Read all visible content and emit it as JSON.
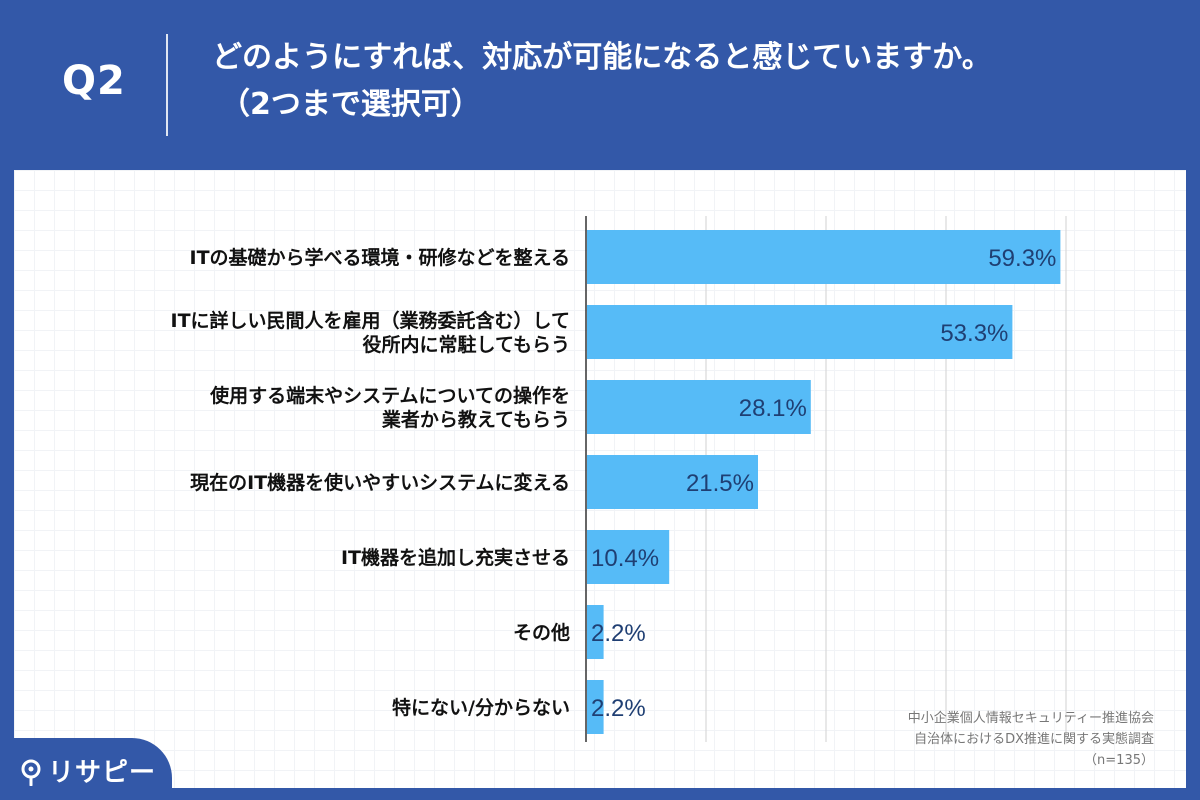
{
  "header": {
    "question_number": "Q2",
    "question_line1": "どのようにすれば、対応が可能になると感じていますか。",
    "question_line2": "（2つまで選択可）"
  },
  "chart_data": {
    "type": "bar",
    "orientation": "horizontal",
    "categories": [
      [
        "ITの基礎から学べる環境・研修などを整える"
      ],
      [
        "ITに詳しい民間人を雇用（業務委託含む）して",
        "役所内に常駐してもらう"
      ],
      [
        "使用する端末やシステムについての操作を",
        "業者から教えてもらう"
      ],
      [
        "現在のIT機器を使いやすいシステムに変える"
      ],
      [
        "IT機器を追加し充実させる"
      ],
      [
        "その他"
      ],
      [
        "特にない/分からない"
      ]
    ],
    "values": [
      59.3,
      53.3,
      28.1,
      21.5,
      10.4,
      2.2,
      2.2
    ],
    "value_labels": [
      "59.3%",
      "53.3%",
      "28.1%",
      "21.5%",
      "10.4%",
      "2.2%",
      "2.2%"
    ],
    "xlim": [
      0,
      60
    ],
    "gridlines": [
      15,
      30,
      45,
      60
    ],
    "grid": true,
    "bar_color": "#56bbf7",
    "value_label_color": "#1f3f73"
  },
  "source": {
    "line1": "中小企業個人情報セキュリティー推進協会",
    "line2": "自治体におけるDX推進に関する実態調査",
    "line3": "（n=135）"
  },
  "brand": {
    "logo_icon": "location-pin-icon",
    "name": "リサピー"
  },
  "colors": {
    "background": "#3358a8",
    "panel": "#ffffff"
  }
}
